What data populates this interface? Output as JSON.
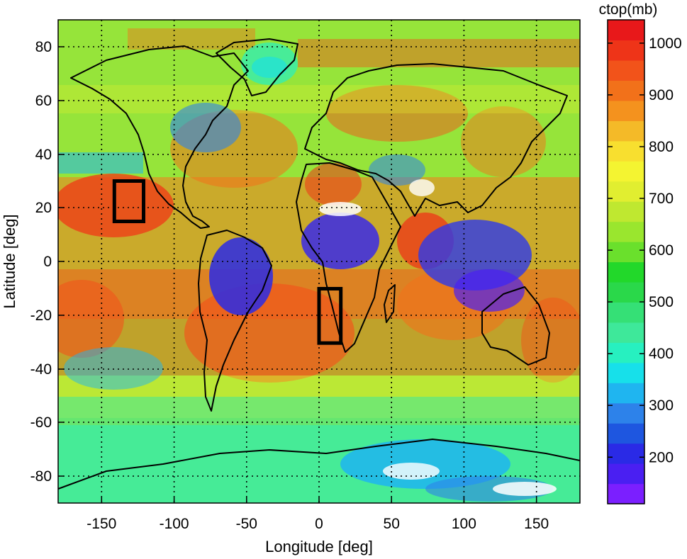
{
  "map": {
    "xlabel": "Longitude [deg]",
    "ylabel": "Latitude [deg]",
    "x_ticks": [
      -150,
      -100,
      -50,
      0,
      50,
      100,
      150
    ],
    "y_ticks": [
      80,
      60,
      40,
      20,
      0,
      -20,
      -40,
      -60,
      -80
    ],
    "x_range": [
      -180,
      180
    ],
    "y_range": [
      -90,
      90
    ],
    "grid": true,
    "grid_style": "dotted",
    "boxes": [
      {
        "lon": [
          -140,
          -120
        ],
        "lat": [
          15,
          30
        ]
      },
      {
        "lon": [
          0,
          15
        ],
        "lat": [
          -30,
          -10
        ]
      }
    ]
  },
  "colorbar": {
    "title": "ctop(mb)",
    "ticks": [
      1000,
      900,
      800,
      700,
      600,
      500,
      400,
      300,
      200
    ],
    "range": [
      110,
      1045
    ],
    "colors": [
      "#7b1fff",
      "#4a1ff2",
      "#2a2ae6",
      "#1e56e0",
      "#2d82ea",
      "#1fb5f0",
      "#17e0ea",
      "#27f0c0",
      "#3ee89a",
      "#35e076",
      "#2ad84a",
      "#22d82a",
      "#6ae02c",
      "#9ae62e",
      "#bfe830",
      "#e1ee30",
      "#f4f431",
      "#f8df2f",
      "#f4ba28",
      "#f4921e",
      "#f2711a",
      "#f2531a",
      "#ee3418",
      "#e8181a"
    ]
  }
}
